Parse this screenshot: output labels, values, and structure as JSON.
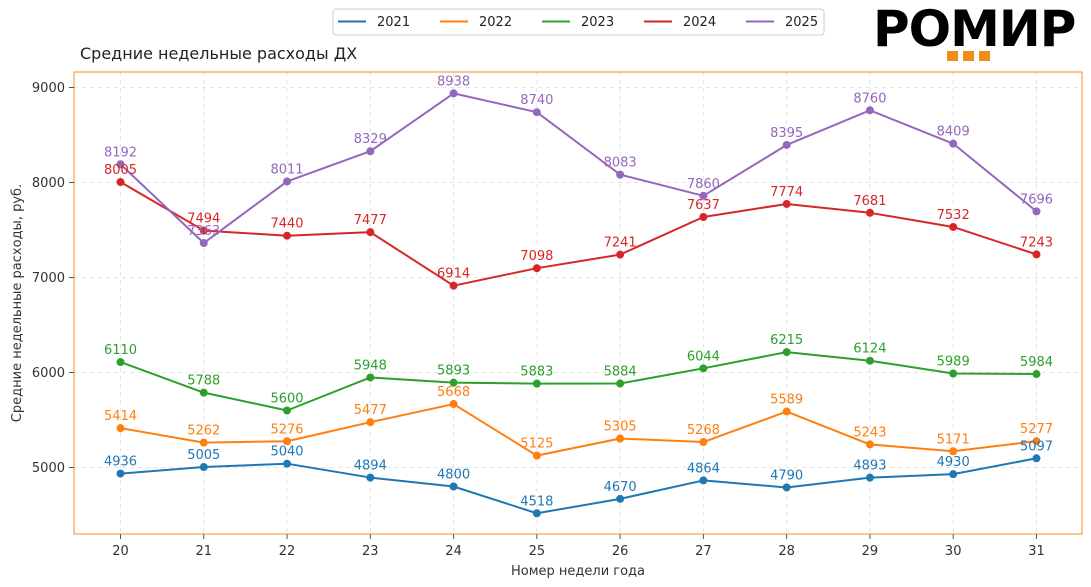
{
  "chart_data": {
    "type": "line",
    "title": "Средние недельные расходы ДХ",
    "xlabel": "Номер недели года",
    "ylabel": "Средние недельные расходы, руб.",
    "x": [
      20,
      21,
      22,
      23,
      24,
      25,
      26,
      27,
      28,
      29,
      30,
      31
    ],
    "xlim": [
      19.4,
      31.55
    ],
    "ylim": [
      4300,
      9170
    ],
    "yticks": [
      5000,
      6000,
      7000,
      8000,
      9000
    ],
    "grid": true,
    "legend_position": "top-center",
    "series": [
      {
        "name": "2021",
        "color": "#1f77b4",
        "values": [
          4936,
          5005,
          5040,
          4894,
          4800,
          4518,
          4670,
          4864,
          4790,
          4893,
          4930,
          5097
        ]
      },
      {
        "name": "2022",
        "color": "#ff7f0e",
        "values": [
          5414,
          5262,
          5276,
          5477,
          5668,
          5125,
          5305,
          5268,
          5589,
          5243,
          5171,
          5277
        ]
      },
      {
        "name": "2023",
        "color": "#2ca02c",
        "values": [
          6110,
          5788,
          5600,
          5948,
          5893,
          5883,
          5884,
          6044,
          6215,
          6124,
          5989,
          5984
        ]
      },
      {
        "name": "2024",
        "color": "#d62728",
        "values": [
          8005,
          7494,
          7440,
          7477,
          6914,
          7098,
          7241,
          7637,
          7774,
          7681,
          7532,
          7243
        ]
      },
      {
        "name": "2025",
        "color": "#9467bd",
        "values": [
          8192,
          7363,
          8011,
          8329,
          8938,
          8740,
          8083,
          7860,
          8395,
          8760,
          8409,
          7696
        ]
      }
    ]
  },
  "logo": {
    "text": "РОМИР",
    "accent_color": "#f28c1c"
  },
  "frame_color": "#f28c1c"
}
